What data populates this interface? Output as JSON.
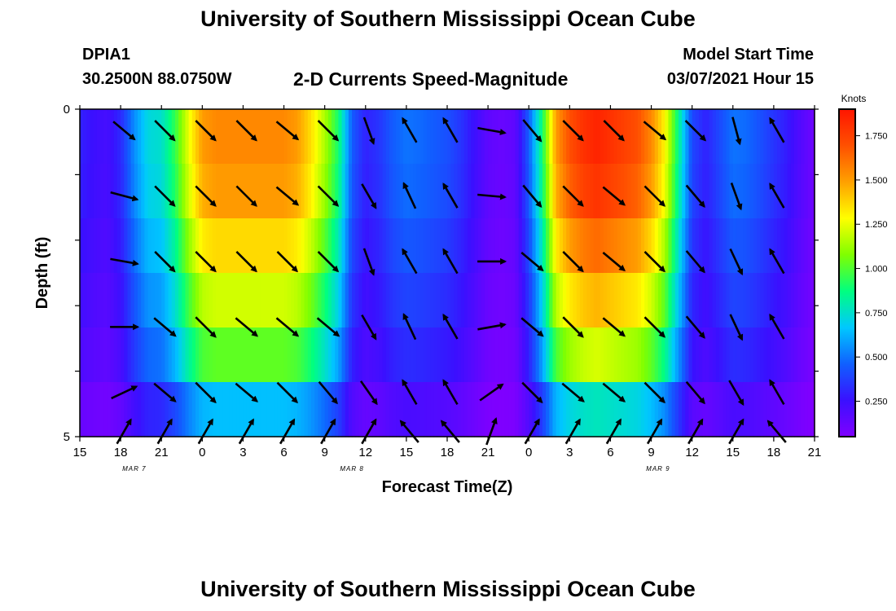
{
  "header": {
    "title": "University of Southern Mississippi Ocean Cube",
    "station": "DPIA1",
    "coords": "30.2500N 88.0750W",
    "subtitle": "2-D Currents Speed-Magnitude",
    "model_start_label": "Model Start Time",
    "model_start_value": "03/07/2021 Hour 15",
    "bottom_title": "University of Southern Mississippi Ocean Cube"
  },
  "chart_data": {
    "type": "heatmap",
    "title": "2-D Currents Speed-Magnitude",
    "xlabel": "Forecast Time(Z)",
    "ylabel": "Depth (ft)",
    "x_hours": [
      15,
      18,
      21,
      24,
      27,
      30,
      33,
      36,
      39,
      42,
      45,
      48,
      51,
      54,
      57,
      60,
      63,
      66,
      69
    ],
    "x_tick_labels": [
      "15",
      "18",
      "21",
      "0",
      "3",
      "6",
      "9",
      "12",
      "15",
      "18",
      "21",
      "0",
      "3",
      "6",
      "9",
      "12",
      "15",
      "18",
      "21"
    ],
    "date_labels": [
      {
        "hour": 19,
        "text": "MAR 7"
      },
      {
        "hour": 35,
        "text": "MAR 8"
      },
      {
        "hour": 57.5,
        "text": "MAR 9"
      }
    ],
    "xlim": [
      15,
      69
    ],
    "y_ticks": [
      0,
      5
    ],
    "ylim": [
      0,
      5
    ],
    "colorbar": {
      "label": "Knots",
      "ticks": [
        0.25,
        0.5,
        0.75,
        1.0,
        1.25,
        1.5,
        1.75
      ],
      "tick_labels": [
        "0.250",
        "0.500",
        "0.750",
        "1.000",
        "1.250",
        "1.500",
        "1.750"
      ],
      "range": [
        0.05,
        1.9
      ],
      "colors": [
        "#8000ff",
        "#3a10ff",
        "#1060ff",
        "#00c8ff",
        "#00ff80",
        "#80ff00",
        "#ffff00",
        "#ffa000",
        "#ff5000",
        "#ff1500"
      ]
    },
    "speed_profile": {
      "hours": [
        15,
        16,
        17,
        18,
        19,
        20,
        21,
        22,
        23,
        24,
        25,
        26,
        27,
        28,
        29,
        30,
        31,
        32,
        33,
        34,
        35,
        36,
        37,
        38,
        39,
        40,
        41,
        42,
        43,
        44,
        45,
        46,
        47,
        48,
        49,
        50,
        51,
        52,
        53,
        54,
        55,
        56,
        57,
        58,
        59,
        60,
        61,
        62,
        63,
        64,
        65,
        66,
        67,
        68,
        69
      ],
      "values": [
        0.3,
        0.25,
        0.22,
        0.32,
        0.55,
        0.72,
        0.75,
        0.95,
        1.25,
        1.5,
        1.55,
        1.55,
        1.55,
        1.55,
        1.55,
        1.55,
        1.5,
        1.35,
        1.15,
        0.9,
        0.45,
        0.3,
        0.35,
        0.45,
        0.5,
        0.48,
        0.45,
        0.42,
        0.35,
        0.25,
        0.15,
        0.12,
        0.15,
        0.45,
        0.9,
        1.5,
        1.7,
        1.8,
        1.85,
        1.8,
        1.75,
        1.7,
        1.55,
        1.3,
        0.85,
        0.4,
        0.3,
        0.4,
        0.5,
        0.48,
        0.42,
        0.35,
        0.28,
        0.18,
        0.1
      ],
      "layer_factors": [
        1.0,
        0.97,
        0.88,
        0.78,
        0.66,
        0.42
      ]
    },
    "vectors": {
      "hours": [
        18,
        21,
        24,
        27,
        30,
        33,
        36,
        39,
        42,
        45,
        48,
        51,
        54,
        57,
        60,
        63,
        66
      ],
      "depths": [
        0.25,
        1.25,
        2.25,
        3.25,
        4.25,
        4.85
      ],
      "bearings_deg": [
        [
          130,
          135,
          135,
          135,
          130,
          135,
          160,
          330,
          330,
          100,
          140,
          135,
          135,
          130,
          135,
          165,
          330
        ],
        [
          105,
          135,
          135,
          135,
          130,
          135,
          150,
          335,
          330,
          95,
          140,
          135,
          130,
          135,
          140,
          160,
          330
        ],
        [
          100,
          135,
          135,
          135,
          135,
          135,
          160,
          330,
          330,
          90,
          130,
          135,
          130,
          135,
          140,
          155,
          330
        ],
        [
          90,
          130,
          135,
          130,
          130,
          130,
          150,
          335,
          330,
          80,
          130,
          135,
          130,
          135,
          140,
          155,
          330
        ],
        [
          65,
          130,
          135,
          130,
          135,
          140,
          145,
          330,
          330,
          55,
          135,
          130,
          130,
          135,
          140,
          150,
          330
        ],
        [
          30,
          30,
          30,
          30,
          30,
          30,
          30,
          320,
          320,
          20,
          30,
          30,
          30,
          30,
          30,
          30,
          320
        ]
      ]
    }
  }
}
